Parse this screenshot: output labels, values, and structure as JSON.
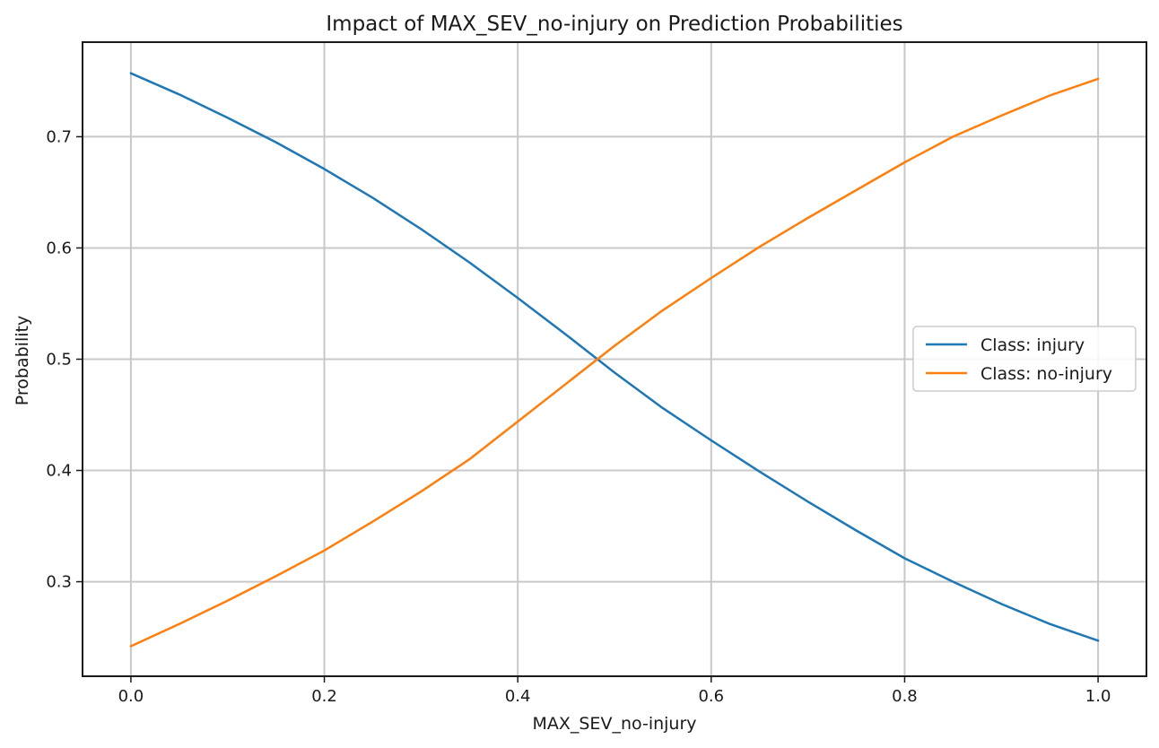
{
  "chart_data": {
    "type": "line",
    "title": "Impact of MAX_SEV_no-injury on Prediction Probabilities",
    "xlabel": "MAX_SEV_no-injury",
    "ylabel": "Probability",
    "xlim": [
      -0.05,
      1.05
    ],
    "ylim": [
      0.215,
      0.785
    ],
    "xticks": [
      0.0,
      0.2,
      0.4,
      0.6,
      0.8,
      1.0
    ],
    "xtick_labels": [
      "0.0",
      "0.2",
      "0.4",
      "0.6",
      "0.8",
      "1.0"
    ],
    "yticks": [
      0.3,
      0.4,
      0.5,
      0.6,
      0.7
    ],
    "ytick_labels": [
      "0.3",
      "0.4",
      "0.5",
      "0.6",
      "0.7"
    ],
    "grid": true,
    "legend_position": "center-right",
    "x": [
      0.0,
      0.05,
      0.1,
      0.15,
      0.2,
      0.25,
      0.3,
      0.35,
      0.4,
      0.45,
      0.5,
      0.55,
      0.6,
      0.65,
      0.7,
      0.75,
      0.8,
      0.85,
      0.9,
      0.95,
      1.0
    ],
    "series": [
      {
        "name": "Class: injury",
        "color": "#1f77b4",
        "values": [
          0.757,
          0.738,
          0.717,
          0.695,
          0.671,
          0.645,
          0.617,
          0.587,
          0.555,
          0.522,
          0.488,
          0.456,
          0.427,
          0.399,
          0.372,
          0.346,
          0.321,
          0.3,
          0.28,
          0.262,
          0.247
        ]
      },
      {
        "name": "Class: no-injury",
        "color": "#ff7f0e",
        "values": [
          0.242,
          0.262,
          0.283,
          0.305,
          0.328,
          0.354,
          0.381,
          0.41,
          0.444,
          0.478,
          0.512,
          0.544,
          0.573,
          0.601,
          0.627,
          0.652,
          0.677,
          0.7,
          0.719,
          0.737,
          0.752
        ]
      }
    ]
  }
}
